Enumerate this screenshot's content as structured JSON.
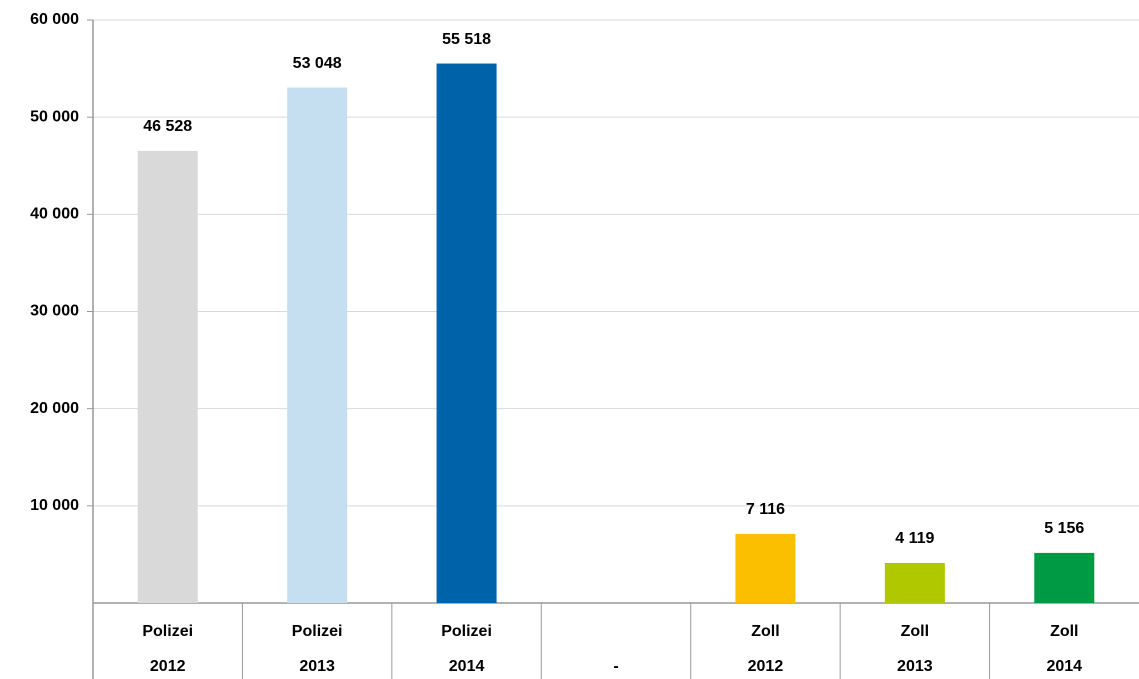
{
  "chart_data": {
    "type": "bar",
    "categories": [
      [
        "Polizei",
        "2012"
      ],
      [
        "Polizei",
        "2013"
      ],
      [
        "Polizei",
        "2014"
      ],
      [
        "-"
      ],
      [
        "Zoll",
        "2012"
      ],
      [
        "Zoll",
        "2013"
      ],
      [
        "Zoll",
        "2014"
      ]
    ],
    "values": [
      46528,
      53048,
      55518,
      null,
      7116,
      4119,
      5156
    ],
    "value_labels": [
      "46 528",
      "53 048",
      "55 518",
      null,
      "7 116",
      "4 119",
      "5 156"
    ],
    "colors": [
      "#d9d9d9",
      "#c5dff0",
      "#0062a8",
      null,
      "#fbbf00",
      "#afc800",
      "#009a44"
    ],
    "ylim": [
      0,
      60000
    ],
    "yticks": [
      {
        "value": 10000,
        "label": "10 000"
      },
      {
        "value": 20000,
        "label": "20 000"
      },
      {
        "value": 30000,
        "label": "30 000"
      },
      {
        "value": 40000,
        "label": "40 000"
      },
      {
        "value": 50000,
        "label": "50 000"
      },
      {
        "value": 60000,
        "label": "60 000"
      }
    ],
    "grid": true
  }
}
